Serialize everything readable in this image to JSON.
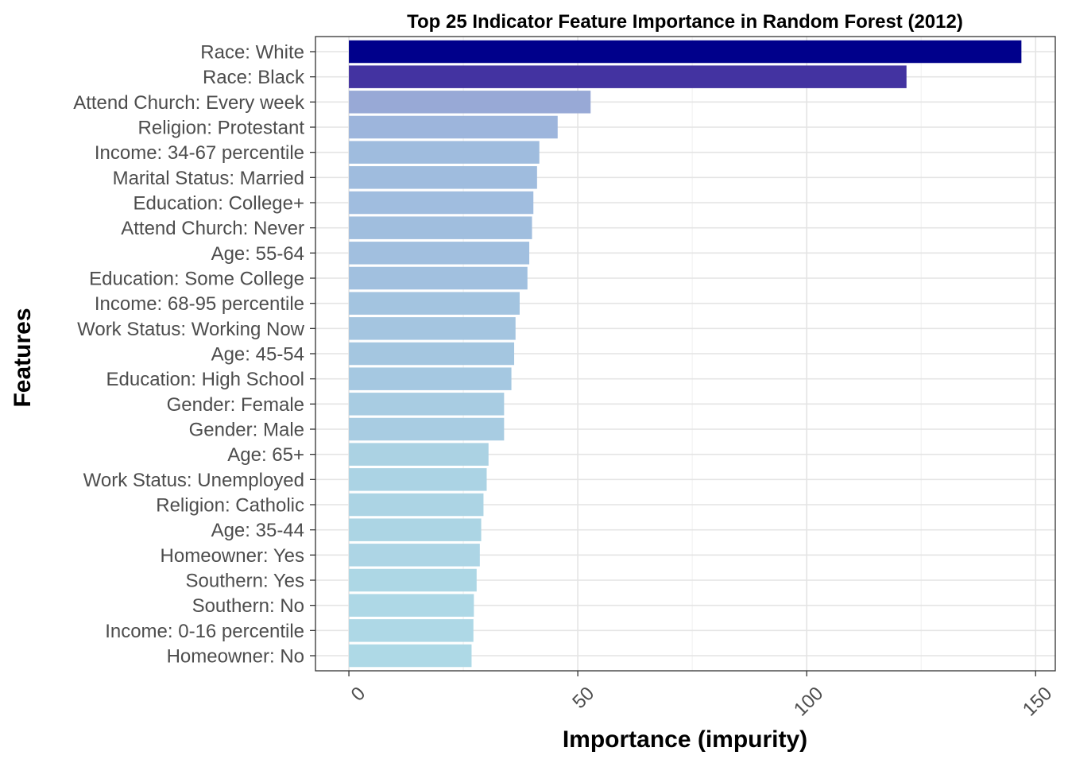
{
  "chart_data": {
    "type": "bar",
    "orientation": "horizontal",
    "title": "Top 25 Indicator Feature Importance in Random Forest (2012)",
    "xlabel": "Importance (impurity)",
    "ylabel": "Features",
    "xlim": [
      -7.3,
      154.3
    ],
    "xticks": [
      0,
      50,
      100,
      150
    ],
    "xtick_labels": [
      "0",
      "50",
      "100",
      "150"
    ],
    "grid": true,
    "legend": "none",
    "categories": [
      "Race: White",
      "Race: Black",
      "Attend Church: Every week",
      "Religion: Protestant",
      "Income: 34-67 percentile",
      "Marital Status: Married",
      "Education: College+",
      "Attend Church: Never",
      "Age: 55-64",
      "Education: Some College",
      "Income: 68-95 percentile",
      "Work Status: Working Now",
      "Age: 45-54",
      "Education: High School",
      "Gender: Female",
      "Gender: Male",
      "Age: 65+",
      "Work Status: Unemployed",
      "Religion: Catholic",
      "Age: 35-44",
      "Homeowner: Yes",
      "Southern: Yes",
      "Southern: No",
      "Income: 0-16 percentile",
      "Homeowner: No"
    ],
    "values": [
      146.9,
      121.8,
      52.8,
      45.6,
      41.6,
      41.1,
      40.3,
      40.0,
      39.4,
      39.0,
      37.3,
      36.4,
      36.1,
      35.5,
      33.9,
      33.9,
      30.5,
      30.1,
      29.4,
      28.9,
      28.6,
      27.9,
      27.3,
      27.2,
      26.8
    ],
    "colors": [
      "#00008b",
      "#4333a1",
      "#98a9d6",
      "#9db5dc",
      "#9fbcde",
      "#9fbcde",
      "#a0bddf",
      "#a0bede",
      "#a1bfdf",
      "#a1c0df",
      "#a3c4e0",
      "#a4c5e0",
      "#a4c6e0",
      "#a5c8e1",
      "#a8cce2",
      "#a8cce2",
      "#abd2e3",
      "#abd3e4",
      "#acd4e4",
      "#acd5e4",
      "#add5e5",
      "#add7e5",
      "#aed8e6",
      "#aed8e6",
      "#aed9e6"
    ]
  }
}
